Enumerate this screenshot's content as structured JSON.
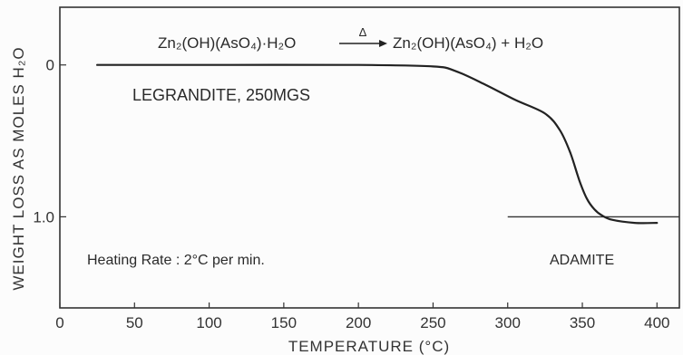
{
  "chart_data": {
    "type": "line",
    "title": "",
    "xlabel": "TEMPERATURE (°C)",
    "ylabel": "WEIGHT LOSS AS MOLES H₂O",
    "xlim": [
      0,
      415
    ],
    "ylim": [
      1.6,
      -0.38
    ],
    "y_inverted": true,
    "grid": false,
    "x_ticks": [
      0,
      50,
      100,
      150,
      200,
      250,
      300,
      350,
      400
    ],
    "x_tick_labels": [
      "0",
      "50",
      "100",
      "150",
      "200",
      "250",
      "300",
      "350",
      "400"
    ],
    "y_ticks": [
      0,
      1.0
    ],
    "y_tick_labels": [
      "0",
      "1.0"
    ],
    "series": [
      {
        "x": [
          25,
          100,
          200,
          250,
          265,
          285,
          305,
          325,
          335,
          342,
          348,
          353,
          358,
          363,
          370,
          385,
          400
        ],
        "y": [
          0,
          0,
          0,
          0.01,
          0.04,
          0.13,
          0.23,
          0.32,
          0.43,
          0.58,
          0.76,
          0.88,
          0.95,
          0.99,
          1.02,
          1.04,
          1.04
        ]
      }
    ],
    "reference_lines": [
      {
        "y": 1.0,
        "x_start": 300,
        "x_end": 415
      }
    ],
    "annotations": {
      "reaction_left": "Zn₂(OH)(AsO₄)·H₂O",
      "reaction_delta": "Δ",
      "reaction_right": "Zn₂(OH)(AsO₄) + H₂O",
      "sample": "LEGRANDITE, 250MGS",
      "heating_rate": "Heating Rate : 2°C per min.",
      "product": "ADAMITE"
    }
  }
}
